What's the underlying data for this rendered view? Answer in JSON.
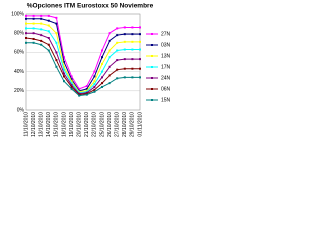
{
  "chart_data": {
    "type": "line",
    "title": "%Opciones ITM Eurostoxx 50 Noviembre",
    "categories": [
      "11/10/2010",
      "12/10/2010",
      "13/10/2010",
      "14/10/2010",
      "15/10/2010",
      "18/10/2010",
      "19/10/2010",
      "20/10/2010",
      "21/10/2010",
      "22/10/2010",
      "25/10/2010",
      "26/10/2010",
      "27/10/2010",
      "28/10/2010",
      "29/10/2010",
      "01/11/2010"
    ],
    "series": [
      {
        "name": "27N",
        "color": "#ff00ff",
        "values": [
          98,
          98,
          98,
          98,
          96,
          55,
          35,
          22,
          25,
          40,
          62,
          80,
          85,
          86,
          86,
          86
        ]
      },
      {
        "name": "03N",
        "color": "#000080",
        "values": [
          95,
          95,
          95,
          93,
          90,
          50,
          32,
          20,
          22,
          35,
          55,
          72,
          78,
          79,
          79,
          79
        ]
      },
      {
        "name": "13N",
        "color": "#ffff00",
        "values": [
          90,
          90,
          90,
          88,
          80,
          45,
          30,
          19,
          20,
          30,
          48,
          62,
          70,
          71,
          71,
          71
        ]
      },
      {
        "name": "17N",
        "color": "#00ffff",
        "values": [
          85,
          85,
          84,
          82,
          70,
          42,
          28,
          18,
          19,
          27,
          40,
          55,
          62,
          63,
          63,
          63
        ]
      },
      {
        "name": "24N",
        "color": "#800080",
        "values": [
          80,
          80,
          78,
          75,
          60,
          38,
          26,
          17,
          18,
          24,
          34,
          45,
          52,
          53,
          53,
          53
        ]
      },
      {
        "name": "06N",
        "color": "#800000",
        "values": [
          75,
          74,
          72,
          68,
          52,
          35,
          24,
          16,
          17,
          21,
          28,
          36,
          42,
          43,
          43,
          43
        ]
      },
      {
        "name": "15N",
        "color": "#008080",
        "values": [
          70,
          70,
          68,
          62,
          45,
          30,
          22,
          15,
          16,
          19,
          24,
          28,
          33,
          34,
          34,
          34
        ]
      }
    ],
    "ylim": [
      0,
      100
    ],
    "yticks": [
      {
        "value": 0,
        "label": "0%"
      },
      {
        "value": 20,
        "label": "20%"
      },
      {
        "value": 40,
        "label": "40%"
      },
      {
        "value": 60,
        "label": "60%"
      },
      {
        "value": 80,
        "label": "80%"
      },
      {
        "value": 100,
        "label": "100%"
      }
    ],
    "grid": true
  }
}
